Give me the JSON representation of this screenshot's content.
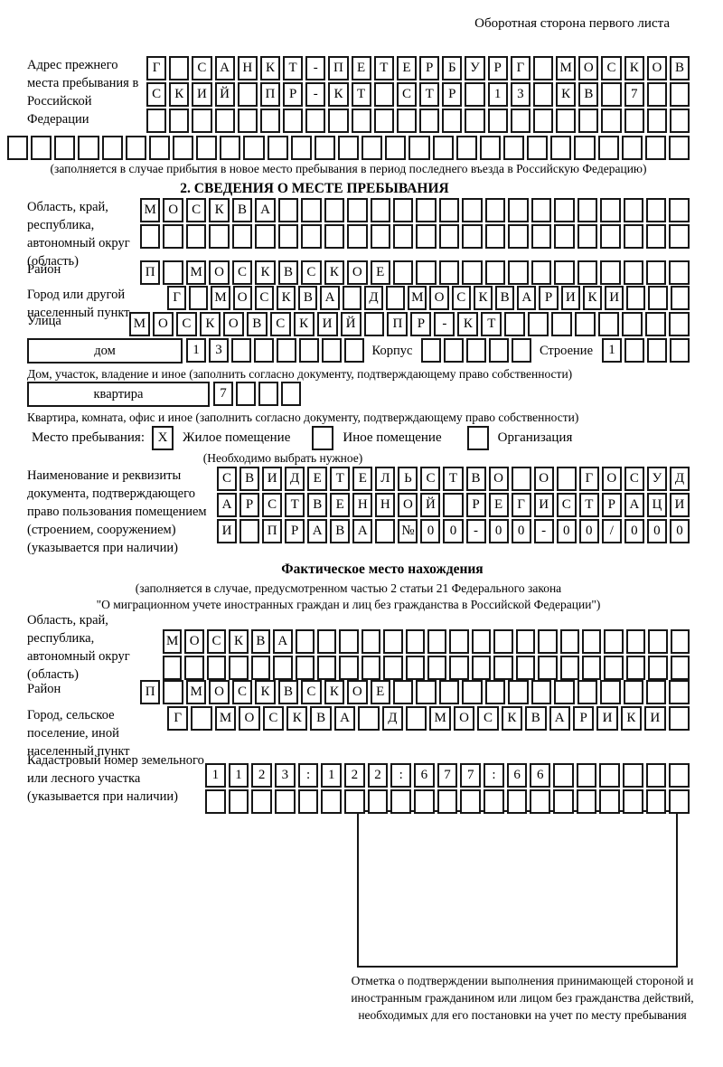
{
  "page": {
    "header_note": "Оборотная сторона первого листа"
  },
  "colors": {
    "ink": "#161616",
    "paper": "#ffffff"
  },
  "prev_address": {
    "label": "Адрес прежнего места пребывания в Российской Федерации",
    "rows": [
      [
        "Г",
        "",
        "С",
        "А",
        "Н",
        "К",
        "Т",
        "-",
        "П",
        "Е",
        "Т",
        "Е",
        "Р",
        "Б",
        "У",
        "Р",
        "Г",
        "",
        "М",
        "О",
        "С",
        "К",
        "О",
        "В"
      ],
      [
        "С",
        "К",
        "И",
        "Й",
        "",
        "П",
        "Р",
        "-",
        "К",
        "Т",
        "",
        "С",
        "Т",
        "Р",
        "",
        "1",
        "3",
        "",
        "К",
        "В",
        "",
        "7",
        "",
        ""
      ],
      [
        "",
        "",
        "",
        "",
        "",
        "",
        "",
        "",
        "",
        "",
        "",
        "",
        "",
        "",
        "",
        "",
        "",
        "",
        "",
        "",
        "",
        "",
        "",
        ""
      ]
    ],
    "full_row": [
      "",
      "",
      "",
      "",
      "",
      "",
      "",
      "",
      "",
      "",
      "",
      "",
      "",
      "",
      "",
      "",
      "",
      "",
      "",
      "",
      "",
      "",
      "",
      "",
      "",
      "",
      "",
      "",
      ""
    ],
    "caption": "(заполняется в случае прибытия в новое место пребывания в период последнего въезда в Российскую Федерацию)"
  },
  "section2": {
    "title": "2. СВЕДЕНИЯ О МЕСТЕ ПРЕБЫВАНИЯ",
    "region": {
      "label": "Область, край, республика, автономный округ (область)",
      "rows": [
        [
          "М",
          "О",
          "С",
          "К",
          "В",
          "А",
          "",
          "",
          "",
          "",
          "",
          "",
          "",
          "",
          "",
          "",
          "",
          "",
          "",
          "",
          "",
          "",
          "",
          ""
        ],
        [
          "",
          "",
          "",
          "",
          "",
          "",
          "",
          "",
          "",
          "",
          "",
          "",
          "",
          "",
          "",
          "",
          "",
          "",
          "",
          "",
          "",
          "",
          "",
          ""
        ]
      ]
    },
    "district": {
      "label": "Район",
      "cells": [
        "П",
        "",
        "М",
        "О",
        "С",
        "К",
        "В",
        "С",
        "К",
        "О",
        "Е",
        "",
        "",
        "",
        "",
        "",
        "",
        "",
        "",
        "",
        "",
        "",
        "",
        ""
      ]
    },
    "city": {
      "label": "Город или другой населенный пункт",
      "cells": [
        "Г",
        "",
        "М",
        "О",
        "С",
        "К",
        "В",
        "А",
        "",
        "Д",
        "",
        "М",
        "О",
        "С",
        "К",
        "В",
        "А",
        "Р",
        "И",
        "К",
        "И",
        "",
        "",
        ""
      ]
    },
    "street": {
      "label": "Улица",
      "cells": [
        "М",
        "О",
        "С",
        "К",
        "О",
        "В",
        "С",
        "К",
        "И",
        "Й",
        "",
        "П",
        "Р",
        "-",
        "К",
        "Т",
        "",
        "",
        "",
        "",
        "",
        "",
        "",
        ""
      ]
    },
    "house": {
      "box_label": "дом",
      "cells": [
        "1",
        "3",
        "",
        "",
        "",
        "",
        "",
        ""
      ],
      "korpus_label": "Корпус",
      "korpus_cells": [
        "",
        "",
        "",
        "",
        ""
      ],
      "stroenie_label": "Строение",
      "stroenie_cells": [
        "1",
        "",
        "",
        ""
      ]
    },
    "house_caption": "Дом, участок, владение и иное (заполнить согласно документу, подтверждающему право собственности)",
    "apartment": {
      "box_label": "квартира",
      "cells": [
        "7",
        "",
        "",
        ""
      ]
    },
    "apartment_caption": "Квартира, комната, офис и иное (заполнить согласно документу, подтверждающему право собственности)",
    "stay": {
      "label": "Место пребывания:",
      "options": [
        {
          "mark": "X",
          "label": "Жилое помещение"
        },
        {
          "mark": "",
          "label": "Иное помещение"
        },
        {
          "mark": "",
          "label": "Организация"
        }
      ],
      "note": "(Необходимо выбрать нужное)"
    },
    "doc": {
      "label": "Наименование и реквизиты документа, подтверждающего право пользования помещением (строением, сооружением) (указывается при наличии)",
      "rows": [
        [
          "С",
          "В",
          "И",
          "Д",
          "Е",
          "Т",
          "Е",
          "Л",
          "Ь",
          "С",
          "Т",
          "В",
          "О",
          "",
          "О",
          "",
          "Г",
          "О",
          "С",
          "У",
          "Д"
        ],
        [
          "А",
          "Р",
          "С",
          "Т",
          "В",
          "Е",
          "Н",
          "Н",
          "О",
          "Й",
          "",
          "Р",
          "Е",
          "Г",
          "И",
          "С",
          "Т",
          "Р",
          "А",
          "Ц",
          "И"
        ],
        [
          "И",
          "",
          "П",
          "Р",
          "А",
          "В",
          "А",
          "",
          "№",
          "0",
          "0",
          "-",
          "0",
          "0",
          "-",
          "0",
          "0",
          "/",
          "0",
          "0",
          "0"
        ]
      ]
    }
  },
  "actual": {
    "title": "Фактическое место нахождения",
    "note1": "(заполняется в случае, предусмотренном частью 2 статьи 21 Федерального закона",
    "note2": "\"О миграционном учете иностранных граждан и лиц без гражданства в Российской Федерации\")",
    "region": {
      "label": "Область, край, республика, автономный округ (область)",
      "rows": [
        [
          "М",
          "О",
          "С",
          "К",
          "В",
          "А",
          "",
          "",
          "",
          "",
          "",
          "",
          "",
          "",
          "",
          "",
          "",
          "",
          "",
          "",
          "",
          "",
          "",
          ""
        ],
        [
          "",
          "",
          "",
          "",
          "",
          "",
          "",
          "",
          "",
          "",
          "",
          "",
          "",
          "",
          "",
          "",
          "",
          "",
          "",
          "",
          "",
          "",
          "",
          ""
        ]
      ]
    },
    "district": {
      "label": "Район",
      "cells": [
        "П",
        "",
        "М",
        "О",
        "С",
        "К",
        "В",
        "С",
        "К",
        "О",
        "Е",
        "",
        "",
        "",
        "",
        "",
        "",
        "",
        "",
        "",
        "",
        "",
        "",
        ""
      ]
    },
    "city": {
      "label": "Город, сельское поселение, иной населенный пункт",
      "cells": [
        "Г",
        "",
        "М",
        "О",
        "С",
        "К",
        "В",
        "А",
        "",
        "Д",
        "",
        "М",
        "О",
        "С",
        "К",
        "В",
        "А",
        "Р",
        "И",
        "К",
        "И",
        ""
      ]
    },
    "cadastral": {
      "label": "Кадастровый номер земельного или лесного участка (указывается при наличии)",
      "rows": [
        [
          "1",
          "1",
          "2",
          "3",
          ":",
          "1",
          "2",
          "2",
          ":",
          "6",
          "7",
          "7",
          ":",
          "6",
          "6",
          "",
          "",
          "",
          "",
          "",
          ""
        ],
        [
          "",
          "",
          "",
          "",
          "",
          "",
          "",
          "",
          "",
          "",
          "",
          "",
          "",
          "",
          "",
          "",
          "",
          "",
          "",
          "",
          ""
        ]
      ]
    },
    "stamp_caption": "Отметка о подтверждении выполнения принимающей стороной и иностранным гражданином или лицом без гражданства действий, необходимых для его постановки на учет по месту пребывания"
  }
}
